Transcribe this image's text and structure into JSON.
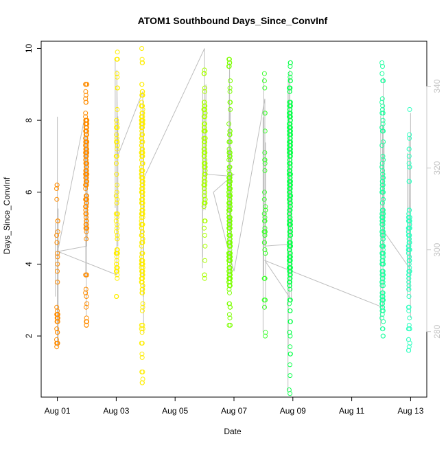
{
  "chart_data": {
    "type": "scatter",
    "title": "ATOM1 Southbound Days_Since_ConvInf",
    "xlabel": "Date",
    "ylabel": "Days_Since_ConvInf",
    "x_ticks": [
      "Aug 01",
      "Aug 03",
      "Aug 05",
      "Aug 07",
      "Aug 09",
      "Aug 11",
      "Aug 13"
    ],
    "x_tick_values": [
      0,
      2,
      4,
      6,
      8,
      10,
      12
    ],
    "xlim": [
      -0.55,
      12.55
    ],
    "y_ticks": [
      2,
      4,
      6,
      8,
      10
    ],
    "ylim": [
      0.3,
      10.2
    ],
    "y2_ticks": [
      280,
      300,
      320,
      340
    ],
    "y2lim": [
      264,
      351
    ],
    "grid": false,
    "legend": "none",
    "clusters": [
      {
        "date": "Aug 01",
        "x": 0.0,
        "color": "#ff8c00",
        "y_min": 1.7,
        "y_max": 6.2,
        "n": 40,
        "dense": [
          1.7,
          3.0
        ],
        "dense_share": 0.55
      },
      {
        "date": "Aug 01",
        "x": 0.98,
        "color": "#ff8c00",
        "y_min": 2.3,
        "y_max": 9.0,
        "n": 150,
        "dense": [
          5.0,
          8.0
        ],
        "dense_share": 0.7
      },
      {
        "date": "Aug 03",
        "x": 2.02,
        "color": "#ffee00",
        "y_min": 3.1,
        "y_max": 9.9,
        "n": 60,
        "dense": [
          3.5,
          5.5
        ],
        "dense_share": 0.4
      },
      {
        "date": "Aug 03",
        "x": 2.88,
        "color": "#ffee00",
        "y_min": 0.7,
        "y_max": 10.0,
        "n": 230,
        "dense": [
          3.2,
          8.5
        ],
        "dense_share": 0.75
      },
      {
        "date": "Aug 06",
        "x": 5.0,
        "color": "#a8ff00",
        "y_min": 3.6,
        "y_max": 9.4,
        "n": 90,
        "dense": [
          5.5,
          8.5
        ],
        "dense_share": 0.7
      },
      {
        "date": "Aug 06",
        "x": 5.85,
        "color": "#7cff00",
        "y_min": 2.3,
        "y_max": 9.7,
        "n": 210,
        "dense": [
          3.5,
          6.5
        ],
        "dense_share": 0.5
      },
      {
        "date": "Aug 08",
        "x": 7.05,
        "color": "#40ff30",
        "y_min": 2.0,
        "y_max": 9.3,
        "n": 40,
        "dense": [
          4.5,
          8.5
        ],
        "dense_share": 0.4
      },
      {
        "date": "Aug 08",
        "x": 7.9,
        "color": "#10ff50",
        "y_min": 0.4,
        "y_max": 9.6,
        "n": 330,
        "dense": [
          3.5,
          8.5
        ],
        "dense_share": 0.8
      },
      {
        "date": "Aug 12",
        "x": 11.05,
        "color": "#20ffa0",
        "y_min": 2.0,
        "y_max": 9.6,
        "n": 150,
        "dense": [
          2.5,
          6.5
        ],
        "dense_share": 0.7
      },
      {
        "date": "Aug 12",
        "x": 11.95,
        "color": "#30ffc0",
        "y_min": 1.6,
        "y_max": 8.3,
        "n": 90,
        "dense": [
          3.0,
          5.5
        ],
        "dense_share": 0.55
      }
    ],
    "gray_line": {
      "color": "#bdbdbd",
      "points": [
        [
          0.0,
          6.6
        ],
        [
          0.0,
          8.1
        ],
        [
          0.0,
          4.3
        ],
        [
          0.92,
          8.05
        ],
        [
          0.96,
          6.0
        ],
        [
          0.98,
          7.3
        ],
        [
          1.0,
          4.5
        ],
        [
          0.02,
          4.35
        ],
        [
          2.02,
          3.7
        ],
        [
          2.02,
          9.4
        ],
        [
          2.05,
          7.0
        ],
        [
          2.9,
          8.8
        ],
        [
          2.92,
          3.5
        ],
        [
          2.94,
          6.4
        ],
        [
          5.0,
          10.0
        ],
        [
          5.02,
          5.5
        ],
        [
          5.05,
          9.0
        ],
        [
          5.05,
          6.5
        ],
        [
          5.82,
          6.45
        ],
        [
          5.85,
          9.6
        ],
        [
          5.86,
          3.6
        ],
        [
          5.88,
          6.5
        ],
        [
          6.0,
          6.5
        ],
        [
          5.3,
          6.0
        ],
        [
          5.9,
          4.1
        ],
        [
          6.0,
          3.8
        ],
        [
          7.05,
          8.6
        ],
        [
          7.05,
          4.5
        ],
        [
          7.85,
          4.55
        ],
        [
          7.9,
          9.4
        ],
        [
          7.9,
          6.9
        ],
        [
          7.95,
          3.0
        ],
        [
          7.05,
          4.1
        ],
        [
          11.05,
          2.8
        ],
        [
          11.1,
          7.4
        ],
        [
          11.1,
          4.9
        ],
        [
          11.95,
          3.9
        ],
        [
          11.95,
          6.3
        ],
        [
          12.0,
          2.5
        ]
      ]
    }
  }
}
